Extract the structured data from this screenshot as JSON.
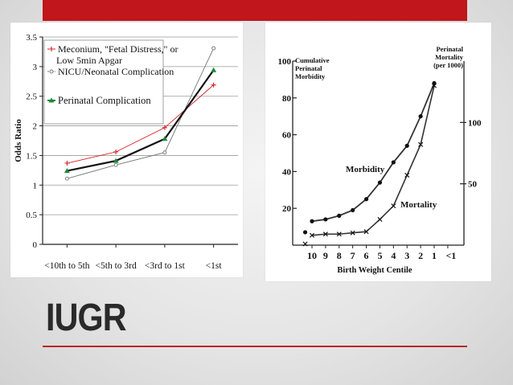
{
  "slide": {
    "title": "IUGR",
    "accent_color": "#c0161c"
  },
  "chart_data": [
    {
      "type": "line",
      "categories": [
        "<10th to 5th",
        "<5th to 3rd",
        "<3rd to 1st",
        "<1st"
      ],
      "ylabel": "Odds Ratio",
      "ylim": [
        0,
        3.5
      ],
      "yticks": [
        "0",
        "0.5",
        "1",
        "1.5",
        "2",
        "2.5",
        "3",
        "3.5"
      ],
      "grid": true,
      "legend_position": "top-left",
      "series": [
        {
          "name": "Meconium, \"Fetal Distress,\" or",
          "name_line2": "Low 5min Apgar",
          "values": [
            1.37,
            1.56,
            1.97,
            2.69
          ],
          "color": "#d02020",
          "marker": "plus"
        },
        {
          "name": "NICU/Neonatal Complication",
          "values": [
            1.11,
            1.34,
            1.55,
            3.31
          ],
          "color": "#707878",
          "marker": "circle"
        },
        {
          "name": "Perinatal Complication",
          "values": [
            1.24,
            1.41,
            1.78,
            2.94
          ],
          "color": "#1a8a3a",
          "marker": "triangle"
        }
      ]
    },
    {
      "type": "line",
      "xlabel": "Birth Weight Centile",
      "categories": [
        "10",
        "9",
        "8",
        "7",
        "6",
        "5",
        "4",
        "3",
        "2",
        "1",
        "<1"
      ],
      "ylabel_left": "Cumulative Perinatal Morbidity",
      "ylabel_left_lines": [
        "Cumulative",
        "Perinatal",
        "Morbidity"
      ],
      "ylim_left": [
        0,
        100
      ],
      "yticks_left": [
        "20",
        "40",
        "60",
        "80",
        "100"
      ],
      "ylabel_right_lines": [
        "Perinatal",
        "Mortality",
        "(per 1000)"
      ],
      "ylim_right": [
        0,
        150
      ],
      "yticks_right": [
        "50",
        "100"
      ],
      "series": [
        {
          "name": "Morbidity",
          "axis": "left",
          "x": [
            10.5,
            10,
            9,
            8,
            7,
            6,
            5,
            4,
            3,
            2,
            1
          ],
          "values": [
            7,
            13,
            14,
            16,
            19,
            25,
            34,
            45,
            54,
            70,
            88
          ]
        },
        {
          "name": "Mortality",
          "axis": "right",
          "x": [
            10.5,
            10,
            9,
            8,
            7,
            6,
            5,
            4,
            3,
            2,
            1
          ],
          "values": [
            1,
            8,
            9,
            9,
            10,
            11,
            21,
            32,
            57,
            82,
            130
          ]
        }
      ]
    }
  ]
}
